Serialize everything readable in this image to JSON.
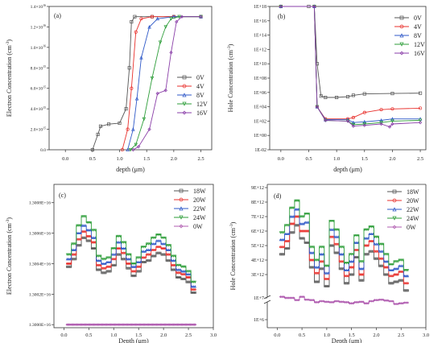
{
  "chart_data": [
    {
      "id": "a",
      "type": "line",
      "panel_label": "(a)",
      "xlabel": "depth (μm)",
      "ylabel": "Electron Concentration (cm",
      "ylabel_sup": "-3",
      "ylabel_end": ")",
      "x_ticks": [
        "0.0",
        "0.5",
        "1.0",
        "1.5",
        "2.0",
        "2.5"
      ],
      "y_ticks": [
        {
          "m": "0.0",
          "e": ""
        },
        {
          "m": "2.0×10",
          "e": "15"
        },
        {
          "m": "4.0×10",
          "e": "15"
        },
        {
          "m": "6.0×10",
          "e": "15"
        },
        {
          "m": "8.0×10",
          "e": "15"
        },
        {
          "m": "1.0×10",
          "e": "16"
        },
        {
          "m": "1.2×10",
          "e": "16"
        },
        {
          "m": "1.4×10",
          "e": "16"
        }
      ],
      "xlim": [
        -0.3,
        2.7
      ],
      "ylim": [
        0,
        1.4e+16
      ],
      "legend_position": "right",
      "series": [
        {
          "name": "0V",
          "color": "#555555",
          "marker": "square",
          "points": [
            [
              0.5,
              0
            ],
            [
              0.6,
              1500000000000000.0
            ],
            [
              0.65,
              2300000000000000.0
            ],
            [
              0.8,
              2500000000000000.0
            ],
            [
              1.0,
              2600000000000000.0
            ],
            [
              1.12,
              4000000000000000.0
            ],
            [
              1.18,
              8000000000000000.0
            ],
            [
              1.22,
              1.25e+16
            ],
            [
              1.28,
              1.3e+16
            ],
            [
              1.6,
              1.3e+16
            ],
            [
              2.0,
              1.3e+16
            ],
            [
              2.5,
              1.3e+16
            ]
          ]
        },
        {
          "name": "4V",
          "color": "#e8302c",
          "marker": "circle",
          "points": [
            [
              1.05,
              0
            ],
            [
              1.15,
              2000000000000000.0
            ],
            [
              1.22,
              6000000000000000.0
            ],
            [
              1.3,
              1.15e+16
            ],
            [
              1.4,
              1.28e+16
            ],
            [
              1.6,
              1.3e+16
            ],
            [
              2.0,
              1.3e+16
            ],
            [
              2.5,
              1.3e+16
            ]
          ]
        },
        {
          "name": "8V",
          "color": "#2f59c8",
          "marker": "triangle",
          "points": [
            [
              1.15,
              0
            ],
            [
              1.25,
              2000000000000000.0
            ],
            [
              1.32,
              5000000000000000.0
            ],
            [
              1.4,
              9000000000000000.0
            ],
            [
              1.55,
              1.2e+16
            ],
            [
              1.7,
              1.28e+16
            ],
            [
              2.0,
              1.3e+16
            ],
            [
              2.5,
              1.3e+16
            ]
          ]
        },
        {
          "name": "12V",
          "color": "#2e9e3a",
          "marker": "triangle-down",
          "points": [
            [
              1.2,
              0
            ],
            [
              1.3,
              500000000000000.0
            ],
            [
              1.45,
              3000000000000000.0
            ],
            [
              1.6,
              7000000000000000.0
            ],
            [
              1.75,
              1.05e+16
            ],
            [
              1.85,
              1.2e+16
            ],
            [
              1.95,
              1.28e+16
            ],
            [
              2.1,
              1.3e+16
            ],
            [
              2.5,
              1.3e+16
            ]
          ]
        },
        {
          "name": "16V",
          "color": "#8a3ea8",
          "marker": "diamond",
          "points": [
            [
              1.25,
              0
            ],
            [
              1.35,
              300000000000000.0
            ],
            [
              1.55,
              2000000000000000.0
            ],
            [
              1.7,
              5500000000000000.0
            ],
            [
              1.85,
              5800000000000000.0
            ],
            [
              1.95,
              9500000000000000.0
            ],
            [
              2.05,
              1.25e+16
            ],
            [
              2.15,
              1.3e+16
            ],
            [
              2.5,
              1.3e+16
            ]
          ]
        }
      ]
    },
    {
      "id": "b",
      "type": "line",
      "panel_label": "(b)",
      "xlabel": "depth (μm)",
      "ylabel": "Hole Concentration (cm",
      "ylabel_sup": "-3",
      "ylabel_end": ")",
      "x_ticks": [
        "0.0",
        "0.5",
        "1.0",
        "1.5",
        "2.0",
        "2.5"
      ],
      "y_ticks": [
        "1E-02",
        "1E+00",
        "1E+02",
        "1E+04",
        "1E+06",
        "1E+08",
        "1E+10",
        "1E+12",
        "1E+14",
        "1E+16",
        "1E+18"
      ],
      "y_scale": "log",
      "xlim": [
        -0.2,
        2.6
      ],
      "ylim_log10": [
        -2,
        18
      ],
      "legend_position": "top-right",
      "series": [
        {
          "name": "0V",
          "color": "#555555",
          "marker": "square",
          "points": [
            [
              0,
              18
            ],
            [
              0.5,
              18
            ],
            [
              0.6,
              18
            ],
            [
              0.65,
              10
            ],
            [
              0.72,
              5.5
            ],
            [
              0.8,
              5.3
            ],
            [
              1.0,
              5.3
            ],
            [
              1.2,
              5.4
            ],
            [
              1.3,
              5.6
            ],
            [
              1.5,
              5.8
            ],
            [
              2.0,
              5.85
            ],
            [
              2.5,
              5.9
            ]
          ]
        },
        {
          "name": "4V",
          "color": "#e8302c",
          "marker": "circle",
          "points": [
            [
              0,
              18
            ],
            [
              0.6,
              18
            ],
            [
              0.65,
              4
            ],
            [
              0.8,
              2.3
            ],
            [
              1.2,
              2.3
            ],
            [
              1.3,
              2.5
            ],
            [
              1.5,
              3.2
            ],
            [
              1.8,
              3.6
            ],
            [
              2.0,
              3.7
            ],
            [
              2.5,
              3.8
            ]
          ]
        },
        {
          "name": "8V",
          "color": "#2f59c8",
          "marker": "triangle",
          "points": [
            [
              0,
              18
            ],
            [
              0.6,
              18
            ],
            [
              0.65,
              4
            ],
            [
              0.8,
              2.2
            ],
            [
              1.2,
              2.2
            ],
            [
              1.3,
              1.8
            ],
            [
              1.5,
              1.9
            ],
            [
              1.8,
              2.1
            ],
            [
              2.0,
              2.3
            ],
            [
              2.5,
              2.3
            ]
          ]
        },
        {
          "name": "12V",
          "color": "#2e9e3a",
          "marker": "triangle-down",
          "points": [
            [
              0,
              18
            ],
            [
              0.6,
              18
            ],
            [
              0.65,
              4
            ],
            [
              0.8,
              2.1
            ],
            [
              1.2,
              2.0
            ],
            [
              1.3,
              1.5
            ],
            [
              1.5,
              1.6
            ],
            [
              1.8,
              1.8
            ],
            [
              2.0,
              2.0
            ],
            [
              2.5,
              2.1
            ]
          ]
        },
        {
          "name": "16V",
          "color": "#8a3ea8",
          "marker": "diamond",
          "points": [
            [
              0,
              18
            ],
            [
              0.6,
              18
            ],
            [
              0.65,
              4
            ],
            [
              0.8,
              2.1
            ],
            [
              1.2,
              2.0
            ],
            [
              1.3,
              1.3
            ],
            [
              1.5,
              1.4
            ],
            [
              1.8,
              1.6
            ],
            [
              1.95,
              1.2
            ],
            [
              2.0,
              1.6
            ],
            [
              2.5,
              1.8
            ]
          ]
        }
      ]
    },
    {
      "id": "c",
      "type": "line",
      "panel_label": "(c)",
      "xlabel": "Depth (μm)",
      "ylabel": "Electron Concentration (cm",
      "ylabel_sup": "-3",
      "ylabel_end": ")",
      "x_ticks": [
        "0.0",
        "0.5",
        "1.0",
        "1.5",
        "2.0",
        "2.5",
        "3.0"
      ],
      "y_ticks": [
        "1.3000E+16",
        "1.3002E+16",
        "1.3004E+16",
        "1.3006E+16",
        "1.3008E+16"
      ],
      "xlim": [
        -0.2,
        3.0
      ],
      "ylim_offset": [
        -0.2,
        9.2
      ],
      "y_offset_note": "units of 1E+12 above 1.3000E+16",
      "legend_position": "top-right",
      "x_grid": [
        0.1,
        0.2,
        0.3,
        0.4,
        0.5,
        0.6,
        0.7,
        0.8,
        0.9,
        1.0,
        1.1,
        1.2,
        1.3,
        1.4,
        1.5,
        1.6,
        1.7,
        1.8,
        1.9,
        2.0,
        2.1,
        2.2,
        2.3,
        2.4,
        2.5,
        2.6
      ],
      "series": [
        {
          "name": "18W",
          "color": "#555555",
          "marker": "square",
          "values": [
            3.8,
            4.3,
            5.2,
            5.7,
            5.5,
            5.0,
            3.6,
            3.4,
            3.5,
            3.9,
            4.6,
            4.3,
            3.7,
            3.2,
            3.5,
            4.1,
            4.2,
            4.5,
            4.7,
            4.6,
            4.2,
            3.6,
            3.1,
            3.0,
            2.8,
            2.1
          ]
        },
        {
          "name": "20W",
          "color": "#e8302c",
          "marker": "circle",
          "values": [
            4.0,
            4.6,
            5.6,
            6.1,
            5.8,
            5.4,
            3.9,
            3.7,
            3.8,
            4.3,
            5.0,
            4.7,
            4.0,
            3.5,
            3.8,
            4.4,
            4.6,
            4.9,
            5.1,
            5.0,
            4.6,
            3.9,
            3.4,
            3.3,
            3.1,
            2.3
          ]
        },
        {
          "name": "22W",
          "color": "#2f59c8",
          "marker": "triangle",
          "values": [
            4.3,
            4.9,
            6.0,
            6.5,
            6.2,
            5.7,
            4.2,
            4.0,
            4.1,
            4.6,
            5.4,
            5.0,
            4.3,
            3.8,
            4.1,
            4.8,
            4.9,
            5.3,
            5.5,
            5.3,
            4.9,
            4.2,
            3.6,
            3.5,
            3.3,
            2.5
          ]
        },
        {
          "name": "24W",
          "color": "#2e9e3a",
          "marker": "triangle-down",
          "values": [
            4.6,
            5.3,
            6.5,
            7.1,
            6.7,
            6.2,
            4.5,
            4.3,
            4.4,
            5.0,
            5.8,
            5.4,
            4.6,
            4.0,
            4.4,
            5.1,
            5.3,
            5.7,
            5.9,
            5.7,
            5.2,
            4.5,
            3.9,
            3.8,
            3.5,
            2.8
          ]
        },
        {
          "name": "0W",
          "color": "#b05cb0",
          "marker": "diamond",
          "values": [
            0,
            0,
            0,
            0,
            0,
            0,
            0,
            0,
            0,
            0,
            0,
            0,
            0,
            0,
            0,
            0,
            0,
            0,
            0,
            0,
            0,
            0,
            0,
            0,
            0,
            0
          ]
        }
      ]
    },
    {
      "id": "d",
      "type": "line",
      "panel_label": "(d)",
      "xlabel": "Depth (μm)",
      "ylabel": "Hole Concentration (cm",
      "ylabel_sup": "-3",
      "ylabel_end": ")",
      "x_ticks": [
        "0.0",
        "0.5",
        "1.0",
        "1.5",
        "2.0",
        "2.5",
        "3.0"
      ],
      "y_ticks_upper": [
        "3E+12",
        "4E+12",
        "5E+12",
        "6E+12",
        "7E+12",
        "8E+12",
        "9E+12"
      ],
      "y_ticks_lower": [
        "1E+6",
        "1E+7"
      ],
      "y_axis_break": true,
      "upper_segment_values_unit": "1E+12",
      "xlim": [
        -0.2,
        3.0
      ],
      "legend_position": "top-right",
      "x_grid": [
        0.1,
        0.2,
        0.3,
        0.4,
        0.5,
        0.6,
        0.7,
        0.8,
        0.9,
        1.0,
        1.1,
        1.2,
        1.3,
        1.4,
        1.5,
        1.6,
        1.7,
        1.8,
        1.9,
        2.0,
        2.1,
        2.2,
        2.3,
        2.4,
        2.5,
        2.6
      ],
      "series": [
        {
          "name": "18W",
          "color": "#555555",
          "marker": "square",
          "upper_values": [
            4.4,
            4.8,
            5.9,
            6.4,
            5.5,
            5.2,
            3.5,
            2.5,
            3.4,
            2.2,
            5.0,
            4.5,
            3.4,
            2.4,
            3.0,
            4.2,
            2.6,
            4.4,
            4.6,
            4.1,
            3.6,
            3.0,
            2.4,
            2.5,
            2.6,
            1.9
          ]
        },
        {
          "name": "20W",
          "color": "#e8302c",
          "marker": "circle",
          "upper_values": [
            4.9,
            5.3,
            6.5,
            7.0,
            6.0,
            6.0,
            4.0,
            3.1,
            3.9,
            2.7,
            5.6,
            5.1,
            3.9,
            2.9,
            3.5,
            4.7,
            3.0,
            5.0,
            5.3,
            4.6,
            4.1,
            3.5,
            2.9,
            3.0,
            3.2,
            2.4
          ]
        },
        {
          "name": "22W",
          "color": "#2f59c8",
          "marker": "triangle",
          "upper_values": [
            5.4,
            5.8,
            7.0,
            7.5,
            6.5,
            6.6,
            4.5,
            3.5,
            4.4,
            3.1,
            6.1,
            5.6,
            4.4,
            3.3,
            3.9,
            5.2,
            3.4,
            5.5,
            5.8,
            5.1,
            4.6,
            3.9,
            3.3,
            3.4,
            3.6,
            2.9
          ]
        },
        {
          "name": "24W",
          "color": "#2e9e3a",
          "marker": "triangle-down",
          "upper_values": [
            5.9,
            6.4,
            7.6,
            8.1,
            7.0,
            7.2,
            4.9,
            4.0,
            4.9,
            3.6,
            6.7,
            6.1,
            4.9,
            3.8,
            4.4,
            5.7,
            3.9,
            6.1,
            6.3,
            5.6,
            5.1,
            4.4,
            3.7,
            3.9,
            4.0,
            3.3
          ]
        },
        {
          "name": "0W",
          "color": "#b05cb0",
          "marker": "diamond",
          "lower_log10": [
            7.05,
            7.0,
            7.0,
            6.9,
            7.05,
            6.92,
            6.9,
            6.8,
            6.85,
            6.82,
            6.8,
            6.85,
            6.82,
            6.8,
            6.75,
            6.8,
            6.82,
            6.75,
            6.85,
            6.9,
            6.92,
            6.88,
            6.85,
            6.72,
            6.75,
            6.78
          ]
        }
      ]
    }
  ]
}
